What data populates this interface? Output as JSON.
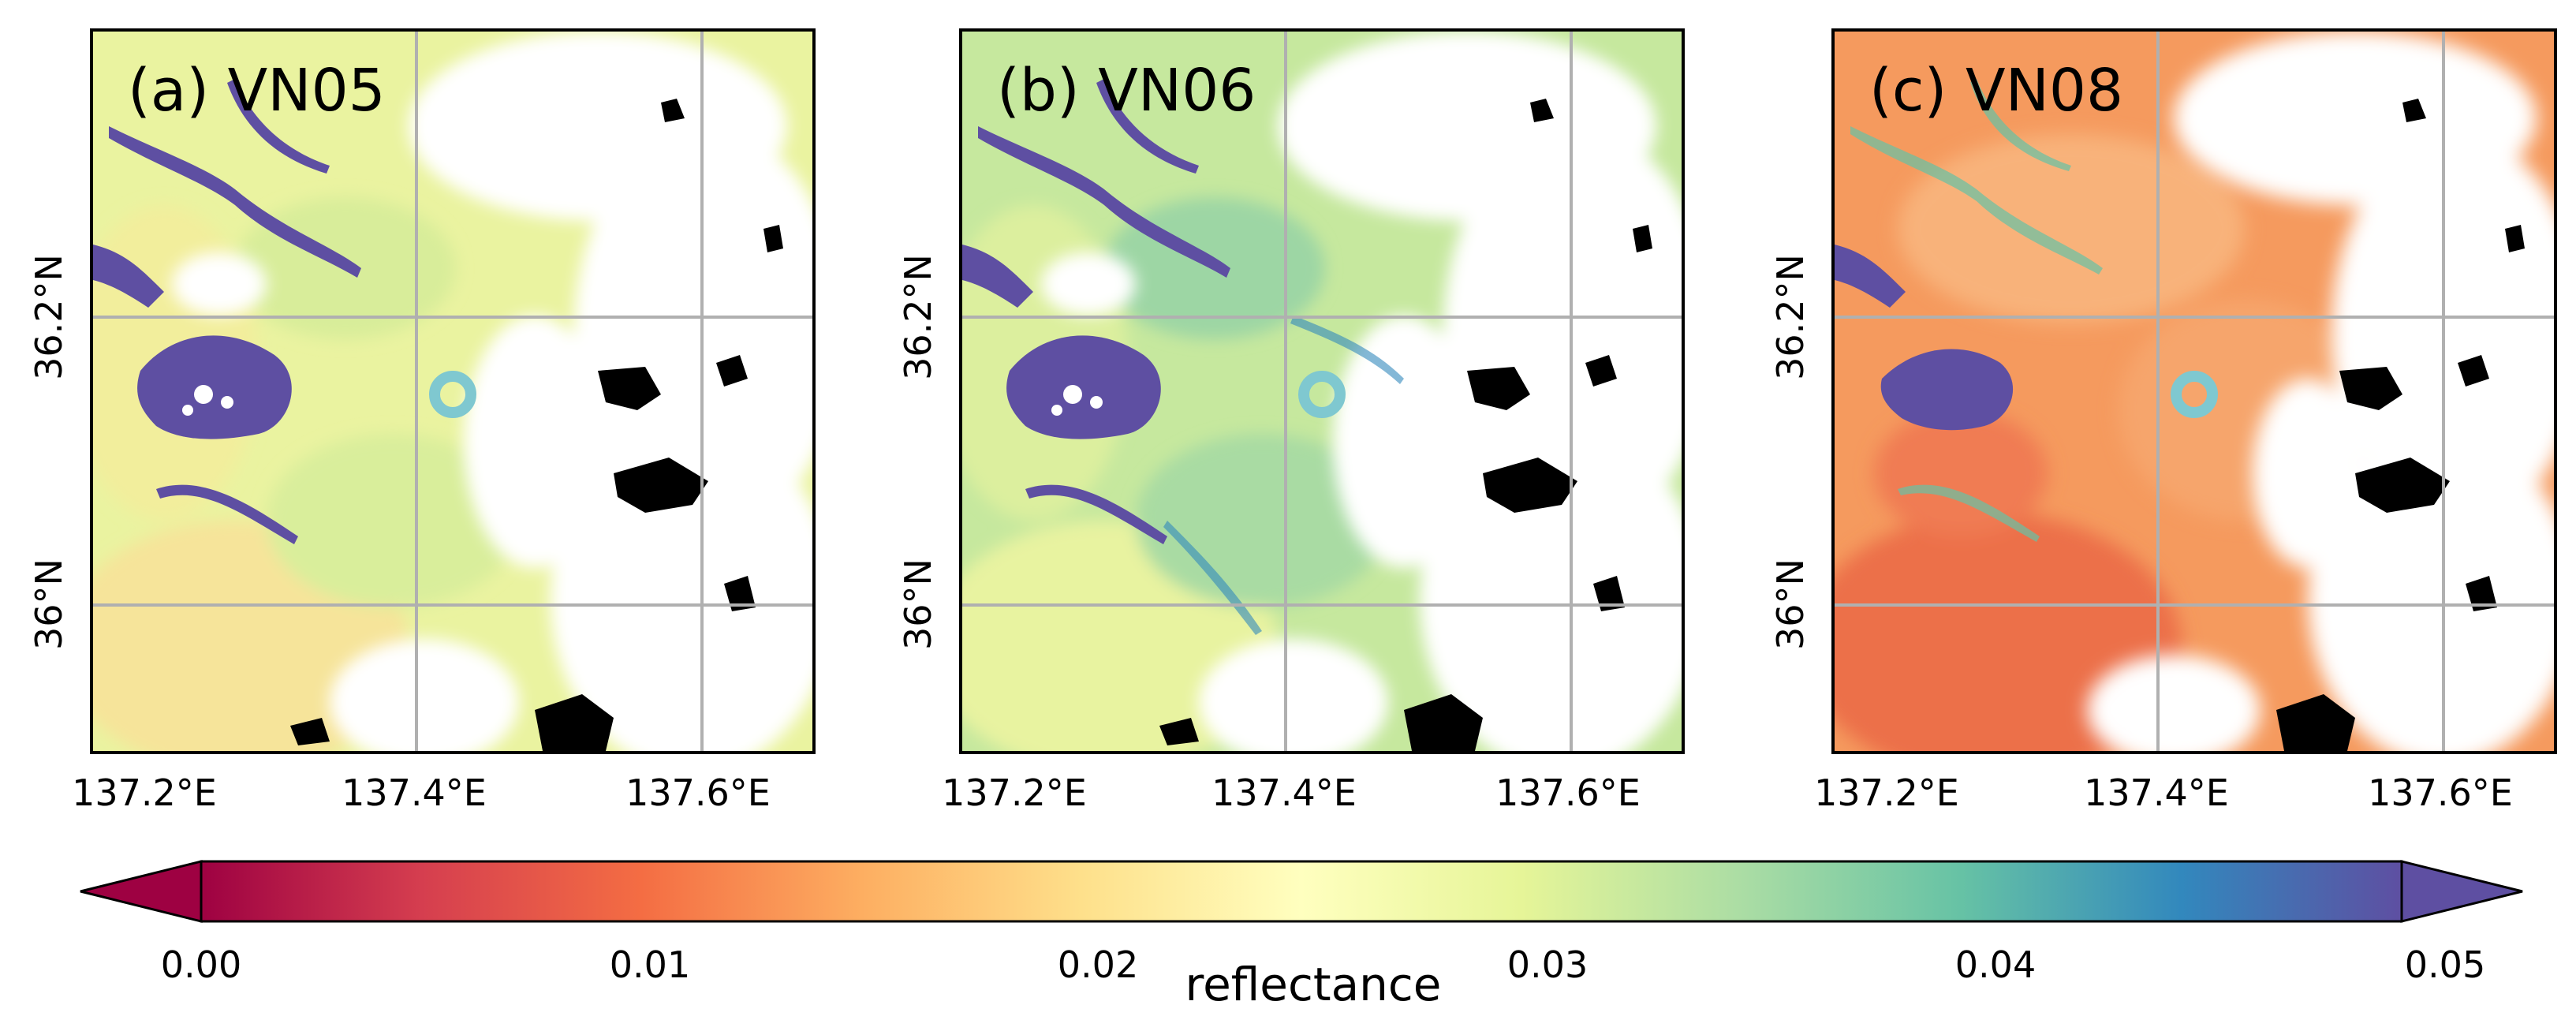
{
  "panels": [
    {
      "title": "(a) VN05",
      "variant": "a"
    },
    {
      "title": "(b) VN06",
      "variant": "b"
    },
    {
      "title": "(c) VN08",
      "variant": "c"
    }
  ],
  "lat_labels": [
    "36.2°N",
    "36°N"
  ],
  "lon_labels": [
    "137.2°E",
    "137.4°E",
    "137.6°E"
  ],
  "colorbar": {
    "label": "reflectance",
    "ticks": [
      "0.00",
      "0.01",
      "0.02",
      "0.03",
      "0.04",
      "0.05"
    ],
    "range": [
      0.0,
      0.05
    ],
    "extend": "both",
    "colormap": "Spectral",
    "colors": [
      "#9e0142",
      "#d53e4f",
      "#f46d43",
      "#fdae61",
      "#fee08b",
      "#ffffbf",
      "#e6f598",
      "#abdda4",
      "#66c2a5",
      "#3288bd",
      "#5e4fa2"
    ]
  },
  "marker": {
    "symbol": "circle",
    "color": "#7fc8d0"
  },
  "gridline_color": "#b0b0b0"
}
